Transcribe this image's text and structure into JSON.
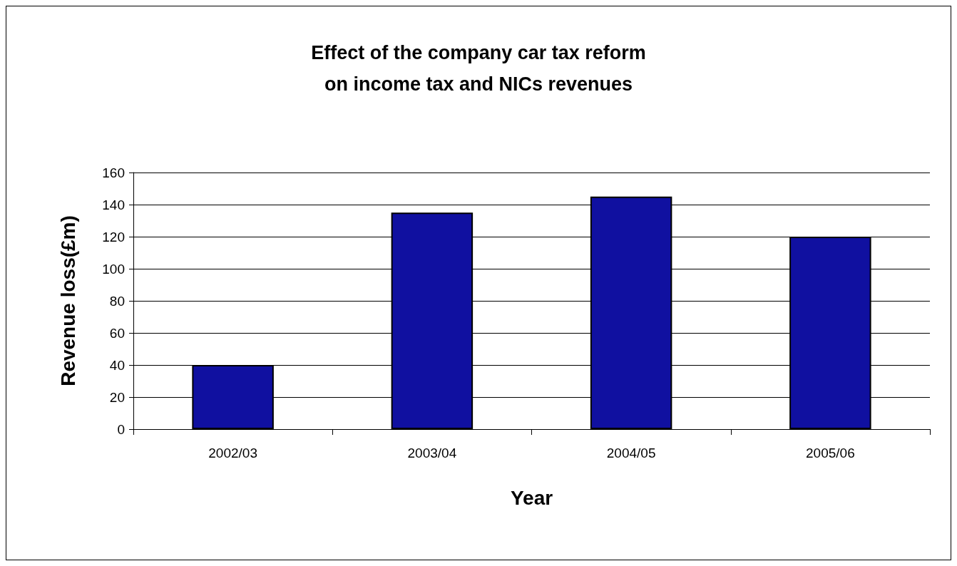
{
  "chart_data": {
    "type": "bar",
    "title": "Effect of the company car tax reform\non income tax and NICs revenues",
    "xlabel": "Year",
    "ylabel": "Revenue loss(£m)",
    "categories": [
      "2002/03",
      "2003/04",
      "2004/05",
      "2005/06"
    ],
    "values": [
      40,
      135,
      145,
      120
    ],
    "color": "#1010a0",
    "ylim": [
      0,
      160
    ],
    "yticks": [
      0,
      20,
      40,
      60,
      80,
      100,
      120,
      140,
      160
    ],
    "grid": "y"
  }
}
